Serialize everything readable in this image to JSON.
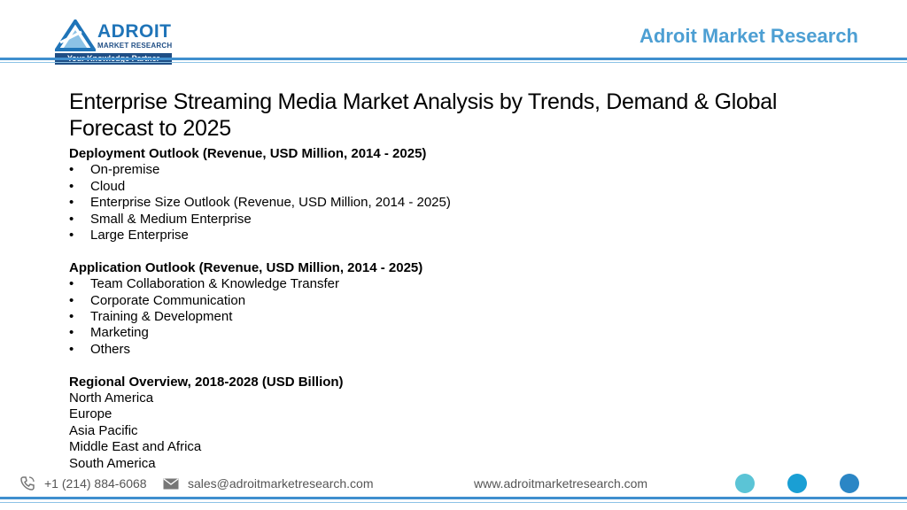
{
  "logo": {
    "name": "ADROIT",
    "subtitle": "MARKET RESEARCH",
    "tagline": "Your Knowledge Partner"
  },
  "header": {
    "brand": "Adroit Market Research"
  },
  "title": "Enterprise Streaming Media Market Analysis by Trends, Demand & Global Forecast to 2025",
  "sections": {
    "deployment": {
      "heading": "Deployment Outlook (Revenue, USD Million, 2014 - 2025)",
      "items": [
        "On-premise",
        "Cloud",
        "Enterprise Size Outlook (Revenue, USD Million, 2014 - 2025)",
        "Small & Medium Enterprise",
        "Large Enterprise"
      ]
    },
    "application": {
      "heading": "Application Outlook (Revenue, USD Million, 2014 - 2025)",
      "items": [
        "Team Collaboration & Knowledge Transfer",
        "Corporate Communication",
        "Training & Development",
        "Marketing",
        "Others"
      ]
    },
    "regional": {
      "heading": "Regional Overview, 2018-2028 (USD Billion)",
      "items": [
        "North America",
        "Europe",
        "Asia Pacific",
        "Middle East and Africa",
        "South America"
      ]
    }
  },
  "footer": {
    "phone": "+1 (214) 884-6068",
    "email": "sales@adroitmarketresearch.com",
    "website": "www.adroitmarketresearch.com",
    "dot_colors": [
      "#5bc4d6",
      "#1a9fd4",
      "#2b86c5"
    ]
  },
  "colors": {
    "accent": "#3f8fce",
    "brand_text": "#4d9fd3",
    "logo_dark": "#1f4e85"
  }
}
